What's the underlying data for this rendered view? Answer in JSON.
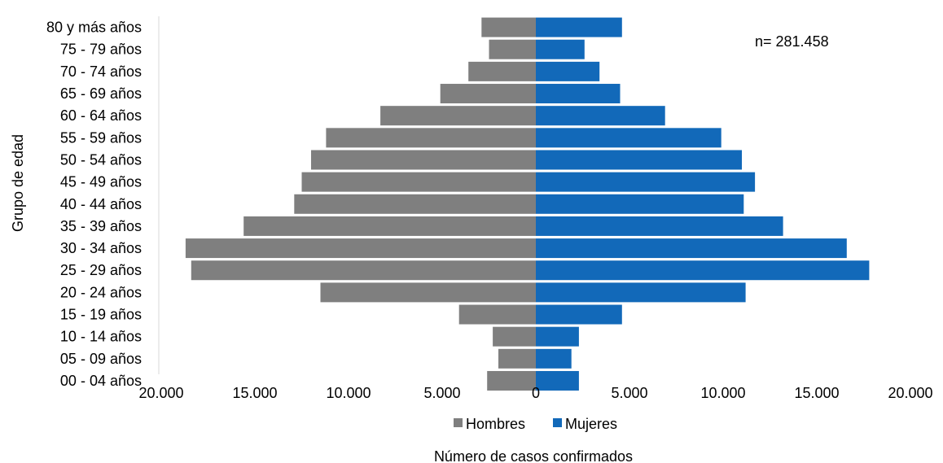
{
  "chart_data": {
    "type": "bar",
    "orientation": "horizontal-population-pyramid",
    "categories": [
      "00 - 04 años",
      "05 - 09 años",
      "10 - 14 años",
      "15 - 19 años",
      "20 - 24 años",
      "25 - 29 años",
      "30 - 34 años",
      "35 - 39 años",
      "40 - 44 años",
      "45 - 49 años",
      "50 - 54 años",
      "55 - 59 años",
      "60 - 64 años",
      "65 - 69 años",
      "70 - 74 años",
      "75 - 79 años",
      "80 y más años"
    ],
    "series": [
      {
        "name": "Hombres",
        "color": "#7f7f7f",
        "values": [
          2600,
          2000,
          2300,
          4100,
          11500,
          18400,
          18700,
          15600,
          12900,
          12500,
          12000,
          11200,
          8300,
          5100,
          3600,
          2500,
          2900
        ]
      },
      {
        "name": "Mujeres",
        "color": "#1269b9",
        "values": [
          2300,
          1900,
          2300,
          4600,
          11200,
          17800,
          16600,
          13200,
          11100,
          11700,
          11000,
          9900,
          6900,
          4500,
          3400,
          2600,
          4600
        ]
      }
    ],
    "x_ticks": [
      "20.000",
      "15.000",
      "10.000",
      "5.000",
      "0",
      "5.000",
      "10.000",
      "15.000",
      "20.000"
    ],
    "xlim": [
      -20000,
      20000
    ],
    "xlabel": "Número de casos confirmados",
    "ylabel": "Grupo de edad",
    "annotation": "n= 281.458",
    "legend": [
      "Hombres",
      "Mujeres"
    ],
    "legend_position": "bottom",
    "grid": false
  }
}
